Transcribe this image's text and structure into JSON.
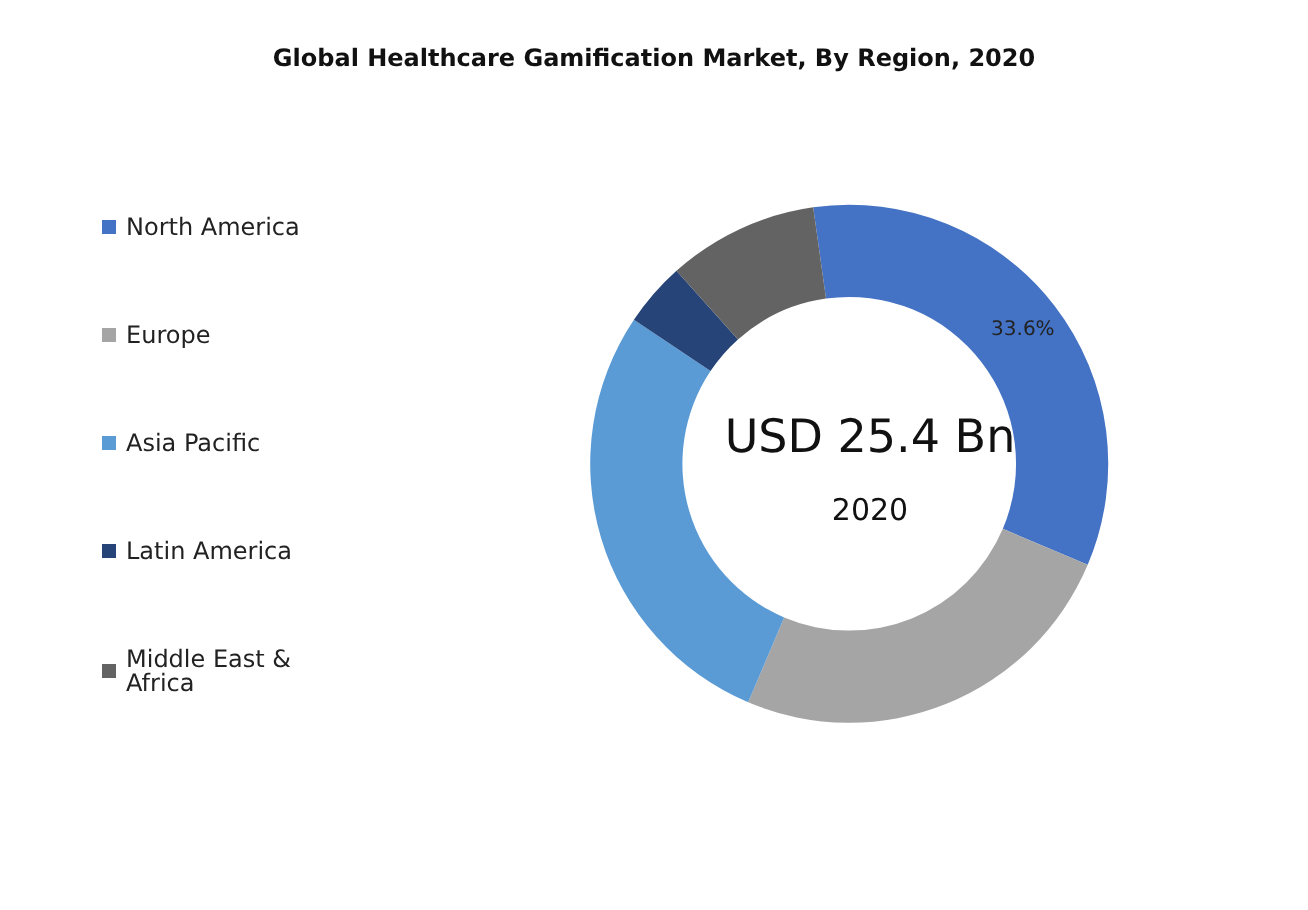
{
  "chart_data": {
    "type": "donut",
    "title": "Global Healthcare Gamification Market, By Region, 2020",
    "categories": [
      "North America",
      "Europe",
      "Asia Pacific",
      "Latin America",
      "Middle East & Africa"
    ],
    "values": [
      33.6,
      25,
      28,
      4,
      9.4
    ],
    "colors": [
      "#4472c4",
      "#a5a5a5",
      "#5b9bd5",
      "#264478",
      "#636363"
    ],
    "value_labels": [
      "33.6%",
      null,
      null,
      null,
      null
    ],
    "legend": "left",
    "annotations": [
      "USD 25.4 Bn",
      "2020"
    ]
  }
}
